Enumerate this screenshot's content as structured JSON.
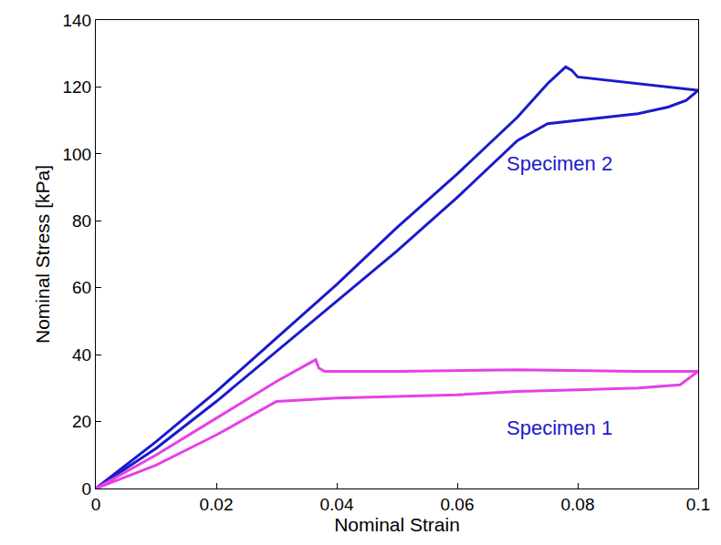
{
  "chart_data": {
    "type": "line",
    "x_label": "Nominal Strain",
    "y_label": "Nominal Stress [kPa]",
    "xlim": [
      0,
      0.1
    ],
    "xticks": [
      0,
      0.02,
      0.04,
      0.06,
      0.08,
      0.1
    ],
    "ylim": [
      0,
      140
    ],
    "yticks": [
      0,
      20,
      40,
      60,
      80,
      100,
      120,
      140
    ],
    "grid": false,
    "series": [
      {
        "color": "#1a1acc",
        "x": [
          0,
          0.01,
          0.02,
          0.03,
          0.04,
          0.05,
          0.06,
          0.07,
          0.075,
          0.078,
          0.079,
          0.08,
          0.085,
          0.09,
          0.095,
          0.1,
          0.098,
          0.095,
          0.09,
          0.085,
          0.08,
          0.075,
          0.07,
          0.06,
          0.05,
          0.04,
          0.03,
          0.02,
          0.01,
          0
        ],
        "values": [
          0,
          14,
          29,
          45,
          61,
          78,
          94,
          111,
          121,
          126,
          125,
          123,
          122,
          121,
          120,
          119,
          116,
          114,
          112,
          111,
          110,
          109,
          104,
          87,
          71,
          56,
          41,
          26,
          12,
          0
        ]
      },
      {
        "color": "#e640e6",
        "x": [
          0,
          0.01,
          0.02,
          0.03,
          0.035,
          0.0365,
          0.037,
          0.038,
          0.05,
          0.07,
          0.09,
          0.1,
          0.097,
          0.09,
          0.08,
          0.07,
          0.06,
          0.05,
          0.04,
          0.03,
          0.028,
          0.02,
          0.01,
          0
        ],
        "values": [
          0,
          10,
          21,
          32,
          37,
          38.5,
          36,
          35,
          35,
          35.5,
          35,
          35,
          31,
          30,
          29.5,
          29,
          28,
          27.5,
          27,
          26,
          24,
          16,
          7,
          0
        ]
      }
    ],
    "annotations": [
      {
        "text": "Specimen 2",
        "x": 0.077,
        "y": 97,
        "color": "#1a1acc"
      },
      {
        "text": "Specimen 1",
        "x": 0.077,
        "y": 18,
        "color": "#1a1acc"
      }
    ]
  }
}
